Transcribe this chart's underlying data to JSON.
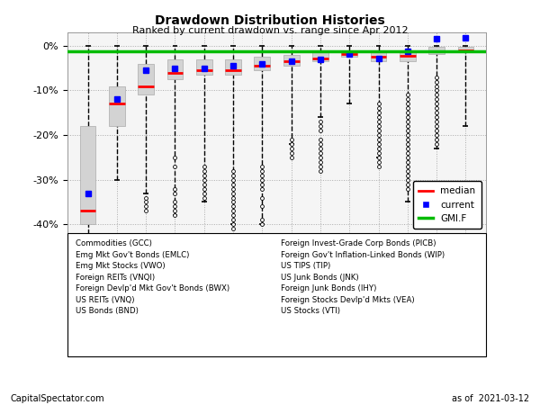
{
  "title": "Drawdown Distribution Histories",
  "subtitle": "Ranked by current drawdown vs. range since Apr 2012",
  "xlabel_note": "CapitalSpectator.com",
  "date_note": "as of  2021-03-12",
  "ylim": [
    -42,
    3
  ],
  "yticks": [
    0,
    -10,
    -20,
    -30,
    -40
  ],
  "ytick_labels": [
    "0%",
    "-10%",
    "-20%",
    "-30%",
    "-40%"
  ],
  "gmi_f_level": -1.2,
  "categories": [
    "GCC",
    "EMLC",
    "VWO",
    "VNQI",
    "BWX",
    "VNQ",
    "BND",
    "PICB",
    "WIP",
    "TIP",
    "JNK",
    "IHY",
    "VEA",
    "VTI"
  ],
  "box_q1": [
    -40,
    -18,
    -11,
    -7.5,
    -6.5,
    -6.5,
    -5.5,
    -4.5,
    -3.5,
    -2.5,
    -3.5,
    -3.5,
    -1.8,
    -1.5
  ],
  "box_q3": [
    -18,
    -9,
    -4,
    -3,
    -3,
    -3,
    -2.5,
    -2,
    -1.5,
    -1,
    -1,
    -1,
    -0.3,
    -0.2
  ],
  "box_median": [
    -37,
    -13,
    -9,
    -6,
    -5.5,
    -5.5,
    -4.5,
    -3.5,
    -2.8,
    -1.8,
    -2.5,
    -2.2,
    -1.2,
    -1.0
  ],
  "whisker_low": [
    -60,
    -30,
    -33,
    -38,
    -35,
    -40,
    -40,
    -22,
    -16,
    -13,
    -25,
    -35,
    -23,
    -18
  ],
  "whisker_high": [
    0,
    0,
    0,
    0,
    0,
    0,
    0,
    0,
    0,
    0,
    0,
    0,
    0,
    0
  ],
  "current": [
    -33,
    -12,
    -5.5,
    -5,
    -5,
    -4.5,
    -4,
    -3.5,
    -3,
    -1.8,
    -2.8,
    -1.3,
    1.5,
    1.8
  ],
  "outlier_groups": [
    [],
    [],
    [
      -34,
      -35,
      -36,
      -37
    ],
    [
      -25,
      -27,
      -32,
      -33,
      -35,
      -36,
      -37,
      -38
    ],
    [
      -27,
      -28,
      -29,
      -30,
      -31,
      -32,
      -33,
      -34
    ],
    [
      -28,
      -29,
      -30,
      -31,
      -32,
      -33,
      -34,
      -35,
      -36,
      -37,
      -38,
      -39,
      -40,
      -41
    ],
    [
      -27,
      -28,
      -29,
      -30,
      -31,
      -32,
      -34,
      -36,
      -39,
      -40
    ],
    [
      -21,
      -22,
      -23,
      -24,
      -25
    ],
    [
      -17,
      -18,
      -19,
      -21,
      -22,
      -23,
      -24,
      -25,
      -26,
      -27,
      -28
    ],
    [],
    [
      -13,
      -14,
      -15,
      -16,
      -17,
      -18,
      -19,
      -20,
      -21,
      -22,
      -23,
      -24,
      -25,
      -26,
      -27
    ],
    [
      -11,
      -12,
      -13,
      -14,
      -15,
      -16,
      -17,
      -18,
      -19,
      -20,
      -21,
      -22,
      -23,
      -24,
      -25,
      -26,
      -27,
      -28,
      -29,
      -30,
      -31,
      -32
    ],
    [
      -7,
      -8,
      -9,
      -10,
      -11,
      -12,
      -13,
      -14,
      -15,
      -16,
      -17,
      -18,
      -19,
      -20,
      -21,
      -22
    ],
    []
  ],
  "box_color": "#D3D3D3",
  "whisker_color": "#000000",
  "median_color": "#FF0000",
  "current_color": "#0000FF",
  "gmif_color": "#00BB00",
  "bg_color": "#FFFFFF",
  "label_text_left": [
    "Commodities (GCC)",
    "Emg Mkt Gov't Bonds (EMLC)",
    "Emg Mkt Stocks (VWO)",
    "Foreign REITs (VNQI)",
    "Foreign Devlp'd Mkt Gov't Bonds (BWX)",
    "US REITs (VNQ)",
    "US Bonds (BND)"
  ],
  "label_text_right": [
    "Foreign Invest-Grade Corp Bonds (PICB)",
    "Foreign Gov't Inflation-Linked Bonds (WIP)",
    "US TIPS (TIP)",
    "US Junk Bonds (JNK)",
    "Foreign Junk Bonds (IHY)",
    "Foreign Stocks Devlp'd Mkts (VEA)",
    "US Stocks (VTI)"
  ]
}
